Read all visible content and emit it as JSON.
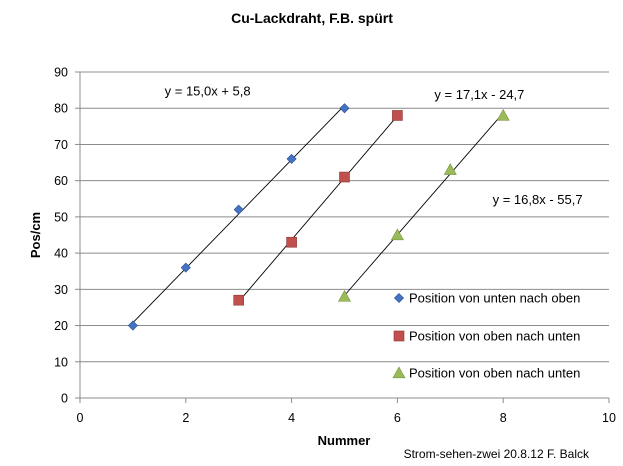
{
  "chart_data": {
    "type": "scatter",
    "title": "Cu-Lackdraht, F.B. spürt",
    "xlabel": "Nummer",
    "ylabel": "Pos/cm",
    "xlim": [
      0,
      10
    ],
    "ylim": [
      0,
      90
    ],
    "xticks": [
      0,
      2,
      4,
      6,
      8,
      10
    ],
    "yticks": [
      0,
      10,
      20,
      30,
      40,
      50,
      60,
      70,
      80,
      90
    ],
    "grid": "horizontal",
    "legend_position": "lower-right",
    "series": [
      {
        "name": "Position von unten nach oben",
        "marker": "diamond",
        "color": "#4472c4",
        "x": [
          1,
          2,
          3,
          4,
          5
        ],
        "y": [
          20,
          36,
          52,
          66,
          80
        ],
        "trendline": {
          "slope": 15.0,
          "intercept": 5.8,
          "x_range": [
            1,
            5
          ],
          "equation": "y = 15,0x + 5,8"
        }
      },
      {
        "name": "Position von oben nach unten",
        "marker": "square",
        "color": "#c0504d",
        "x": [
          3,
          4,
          5,
          6
        ],
        "y": [
          27,
          43,
          61,
          78
        ],
        "trendline": {
          "slope": 17.1,
          "intercept": -24.7,
          "x_range": [
            3,
            6
          ],
          "equation": "y = 17,1x - 24,7"
        }
      },
      {
        "name": "Position von oben nach unten",
        "marker": "triangle",
        "color": "#9bbb59",
        "x": [
          5,
          6,
          7,
          8
        ],
        "y": [
          28,
          45,
          63,
          78
        ],
        "trendline": {
          "slope": 16.8,
          "intercept": -55.7,
          "x_range": [
            5,
            8
          ],
          "equation": "y = 16,8x - 55,7"
        }
      }
    ]
  },
  "caption": "Strom-sehen-zwei 20.8.12 F. Balck"
}
